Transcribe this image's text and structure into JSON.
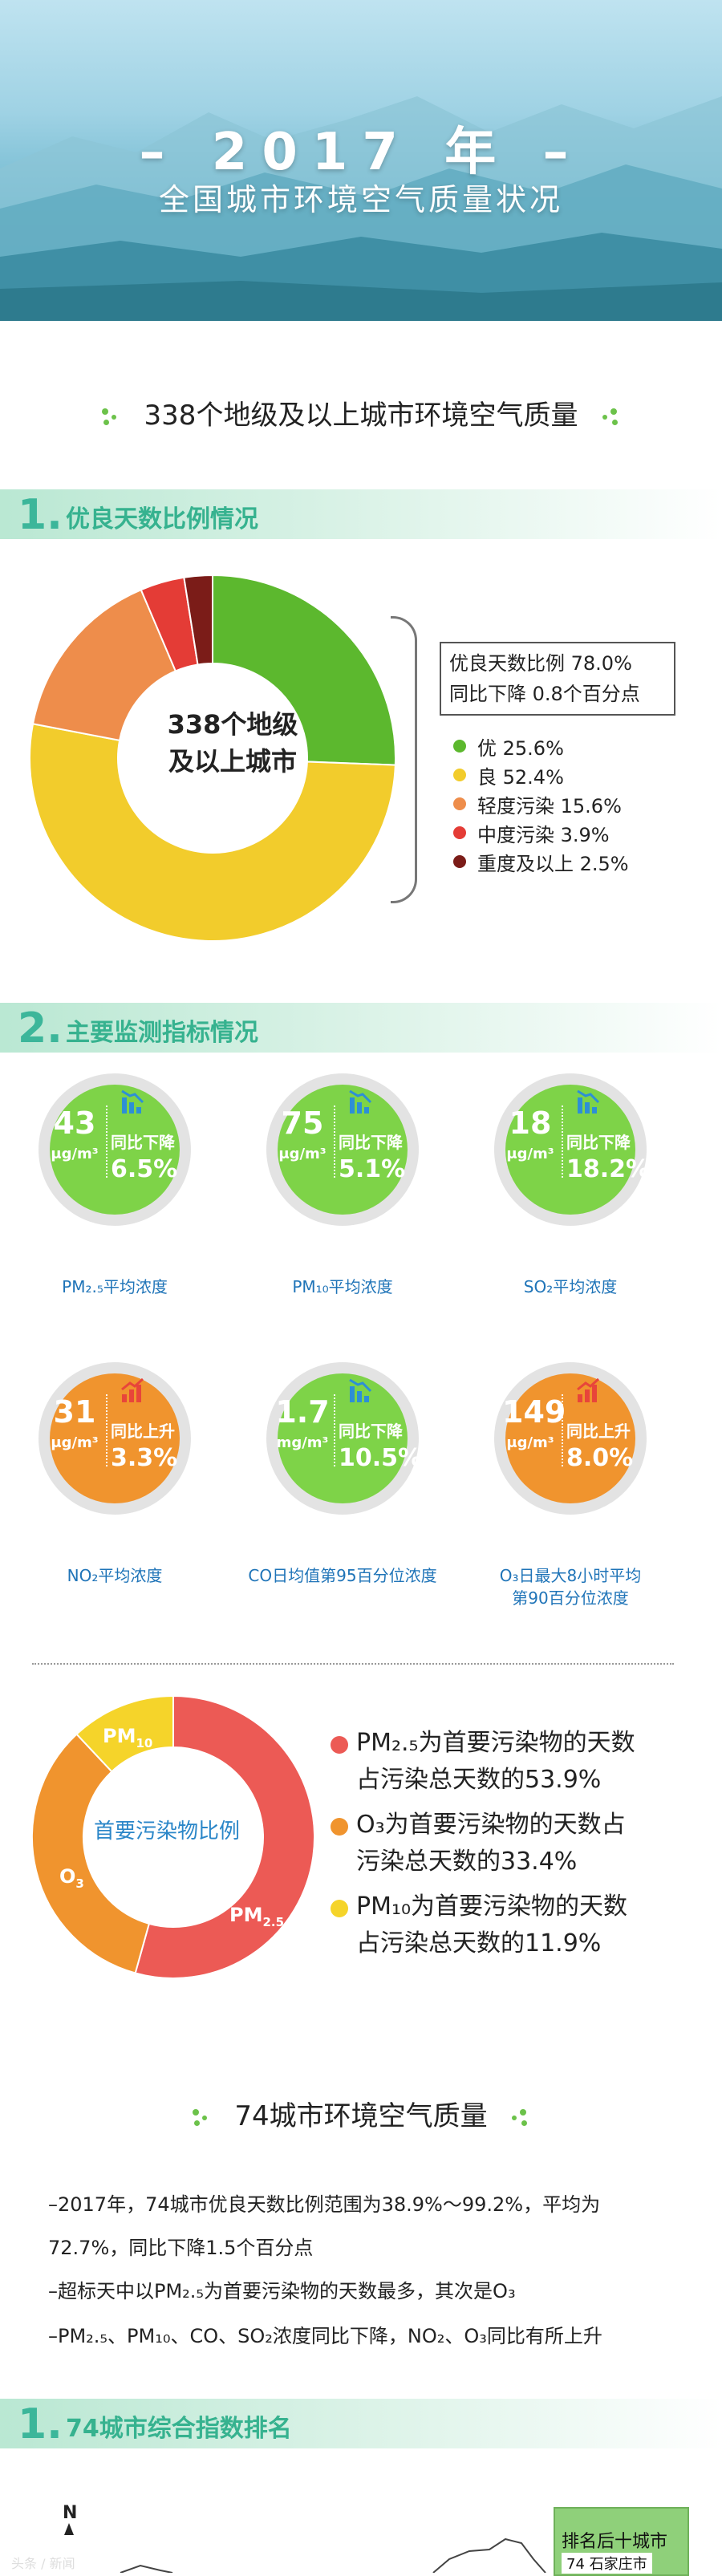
{
  "header": {
    "year": "– 2017 年 –",
    "title": "全国城市环境空气质量状况"
  },
  "section1": {
    "title": "338个地级及以上城市环境空气质量"
  },
  "part1": {
    "num": "1.",
    "title": "优良天数比例情况",
    "center_line1": "338个地级",
    "center_line2": "及以上城市",
    "ratio_line1": "优良天数比例 78.0%",
    "ratio_line2": "同比下降 0.8个百分点",
    "legend": [
      {
        "label": "优 25.6%",
        "color": "#5cb82e"
      },
      {
        "label": "良 52.4%",
        "color": "#f2cc2c"
      },
      {
        "label": "轻度污染 15.6%",
        "color": "#ee8d4b"
      },
      {
        "label": "中度污染 3.9%",
        "color": "#e43c36"
      },
      {
        "label": "重度及以上 2.5%",
        "color": "#7b1c18"
      }
    ]
  },
  "chart_data": [
    {
      "type": "pie",
      "categories": [
        "优",
        "良",
        "轻度污染",
        "中度污染",
        "重度及以上"
      ],
      "values": [
        25.6,
        52.4,
        15.6,
        3.9,
        2.5
      ],
      "colors": [
        "#5cb82e",
        "#f2cc2c",
        "#ee8d4b",
        "#e43c36",
        "#7b1c18"
      ]
    },
    {
      "type": "pie",
      "title": "首要污染物比例",
      "categories": [
        "PM2.5",
        "O3",
        "PM10"
      ],
      "values": [
        53.9,
        33.4,
        11.9
      ],
      "colors": [
        "#ec5a55",
        "#f0942e",
        "#f5d42a"
      ]
    }
  ],
  "part2": {
    "num": "2.",
    "title": "主要监测指标情况",
    "indicators": [
      {
        "value": "43",
        "unit": "μg/m³",
        "dir": "同比下降",
        "pct": "6.5%",
        "label": "PM₂.₅平均浓度",
        "icon": "chart-down-icon",
        "color": "green"
      },
      {
        "value": "75",
        "unit": "μg/m³",
        "dir": "同比下降",
        "pct": "5.1%",
        "label": "PM₁₀平均浓度",
        "icon": "chart-down-icon",
        "color": "green"
      },
      {
        "value": "18",
        "unit": "μg/m³",
        "dir": "同比下降",
        "pct": "18.2%",
        "label": "SO₂平均浓度",
        "icon": "chart-down-icon",
        "color": "green"
      },
      {
        "value": "31",
        "unit": "μg/m³",
        "dir": "同比上升",
        "pct": "3.3%",
        "label": "NO₂平均浓度",
        "icon": "chart-up-icon",
        "color": "orange"
      },
      {
        "value": "1.7",
        "unit": "mg/m³",
        "dir": "同比下降",
        "pct": "10.5%",
        "label": "CO日均值第95百分位浓度",
        "icon": "chart-down-icon",
        "color": "green"
      },
      {
        "value": "149",
        "unit": "μg/m³",
        "dir": "同比上升",
        "pct": "8.0%",
        "label1": "O₃日最大8小时平均",
        "label2": "第90百分位浓度",
        "icon": "chart-up-icon",
        "color": "orange"
      }
    ],
    "donut_center": "首要污染物比例",
    "donut_labels": {
      "pm25": "PM",
      "pm25_sub": "2.5",
      "o3": "O",
      "o3_sub": "3",
      "pm10": "PM",
      "pm10_sub": "10"
    },
    "legend": [
      {
        "line1": "PM₂.₅为首要污染物的天数",
        "line2": "占污染总天数的53.9%"
      },
      {
        "line1": "O₃为首要污染物的天数占",
        "line2": "污染总天数的33.4%"
      },
      {
        "line1": "PM₁₀为首要污染物的天数",
        "line2": "占污染总天数的11.9%"
      }
    ]
  },
  "section2": {
    "title": "74城市环境空气质量",
    "p1": "–2017年，74城市优良天数比例范围为38.9%～99.2%，平均为",
    "p2": "72.7%，同比下降1.5个百分点",
    "p3": "–超标天中以PM₂.₅为首要污染物的天数最多，其次是O₃",
    "p4": "–PM₂.₅、PM₁₀、CO、SO₂浓度同比下降，NO₂、O₃同比有所上升"
  },
  "part3": {
    "num": "1.",
    "title": "74城市综合指数排名",
    "north": "N",
    "rank_title": "排名后十城市",
    "rank_first": "74  石家庄市",
    "watermark": "头条 / 新闻"
  }
}
